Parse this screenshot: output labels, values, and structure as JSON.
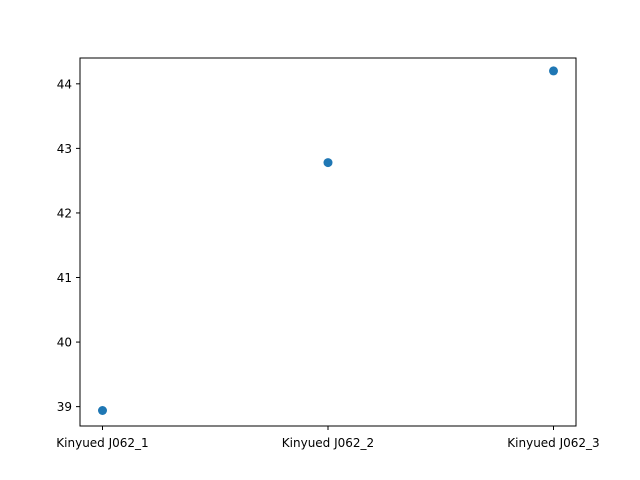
{
  "chart_data": {
    "type": "scatter",
    "categories": [
      "Kinyued J062_1",
      "Kinyued J062_2",
      "Kinyued J062_3"
    ],
    "values": [
      38.94,
      42.78,
      44.2
    ],
    "title": "",
    "xlabel": "",
    "ylabel": "",
    "ylim": [
      38.7,
      44.4
    ],
    "yticks": [
      "39",
      "40",
      "41",
      "42",
      "43",
      "44"
    ],
    "grid": false,
    "legend": "none",
    "marker_color": "#1f77b4"
  }
}
